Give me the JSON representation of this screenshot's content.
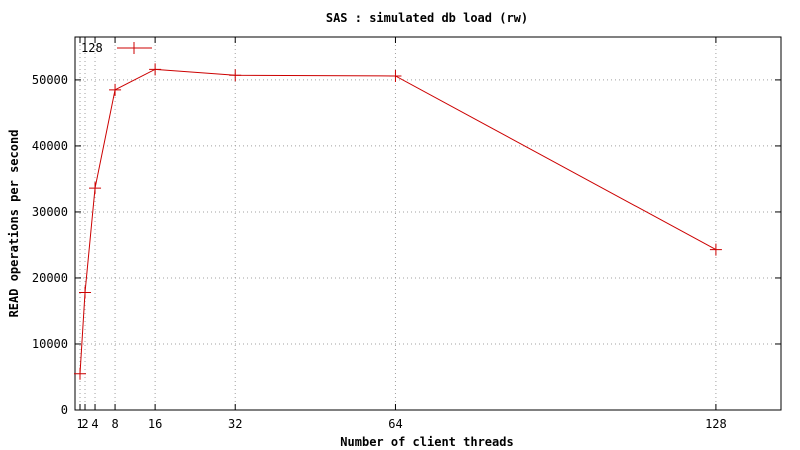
{
  "chart_data": {
    "type": "line",
    "title": "SAS : simulated db load (rw)",
    "xlabel": "Number of client threads",
    "ylabel": "READ operations per second",
    "x": [
      1,
      2,
      4,
      8,
      16,
      32,
      64,
      128
    ],
    "series": [
      {
        "name": "128",
        "values": [
          5500,
          17800,
          33600,
          48500,
          51600,
          50700,
          50600,
          24300
        ],
        "color": "#cc0000"
      }
    ],
    "xticks": [
      1,
      2,
      4,
      8,
      16,
      32,
      64,
      128
    ],
    "xtick_labels": [
      "1",
      "2",
      "4",
      "8",
      "16",
      "32",
      "64",
      "128"
    ],
    "yticks": [
      0,
      10000,
      20000,
      30000,
      40000,
      50000
    ],
    "ytick_labels": [
      "0",
      "10000",
      "20000",
      "30000",
      "40000",
      "50000"
    ],
    "xlim": [
      0,
      141
    ],
    "ylim": [
      0,
      56500
    ],
    "grid": true,
    "legend_position": "top-left"
  }
}
